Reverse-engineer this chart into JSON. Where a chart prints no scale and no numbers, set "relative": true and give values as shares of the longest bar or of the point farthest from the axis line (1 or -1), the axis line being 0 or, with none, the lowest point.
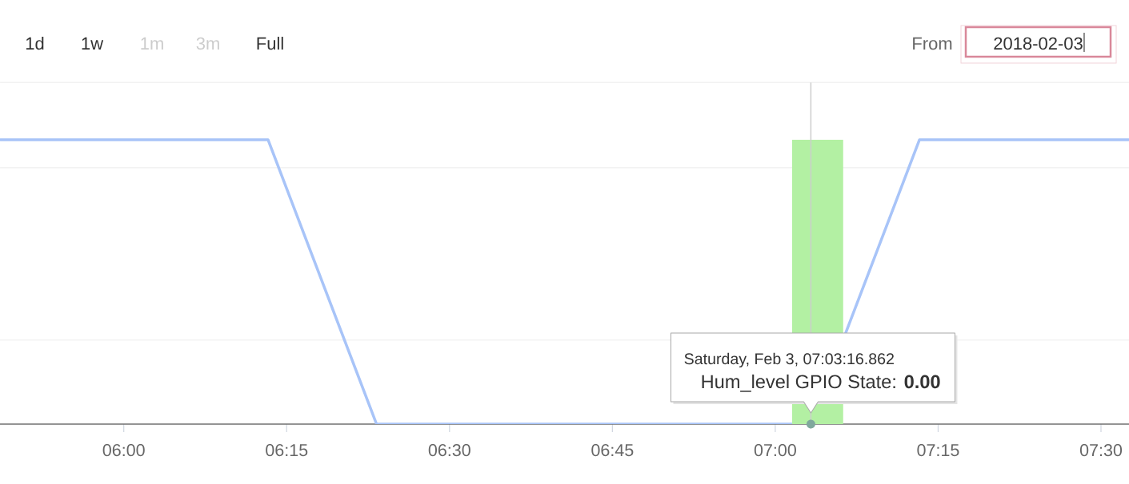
{
  "chart_data": {
    "type": "line",
    "relative": true,
    "annotations": [
      "1d",
      "1w",
      "1m",
      "3m",
      "Full",
      "From",
      "2018-02-03",
      "Saturday, Feb 3, 07:03:16.862",
      {
        "text": "Hum_level GPIO State: **0.00**",
        "x": 7.0547,
        "y": 0
      }
    ],
    "xlim": [
      5.81,
      7.543
    ],
    "xticks": [
      {
        "value": 6,
        "label": "06:00"
      },
      {
        "value": 6.25,
        "label": "06:15"
      },
      {
        "value": 6.5,
        "label": "06:30"
      },
      {
        "value": 6.75,
        "label": "06:45"
      },
      {
        "value": 7,
        "label": "07:00"
      },
      {
        "value": 7.25,
        "label": "07:15"
      },
      {
        "value": 7.5,
        "label": "07:30"
      }
    ],
    "ref_lines": [
      {
        "axis": "y",
        "value": 0.295,
        "color": "#e6e6e6"
      },
      {
        "axis": "y",
        "value": 0.902,
        "color": "#e6e6e6"
      },
      {
        "axis": "x",
        "value": 7.0547,
        "color": "#cccccc"
      }
    ],
    "series": [
      {
        "color": "#a8c4f8",
        "x": [
          5.81,
          6.2214,
          6.388,
          7.0547,
          7.2214,
          7.543
        ],
        "values": [
          1,
          1,
          0,
          0,
          1,
          1
        ]
      },
      {
        "type": "bar",
        "color": "#b3f0a3",
        "x": [
          7.065
        ],
        "values": [
          1
        ]
      }
    ]
  }
}
